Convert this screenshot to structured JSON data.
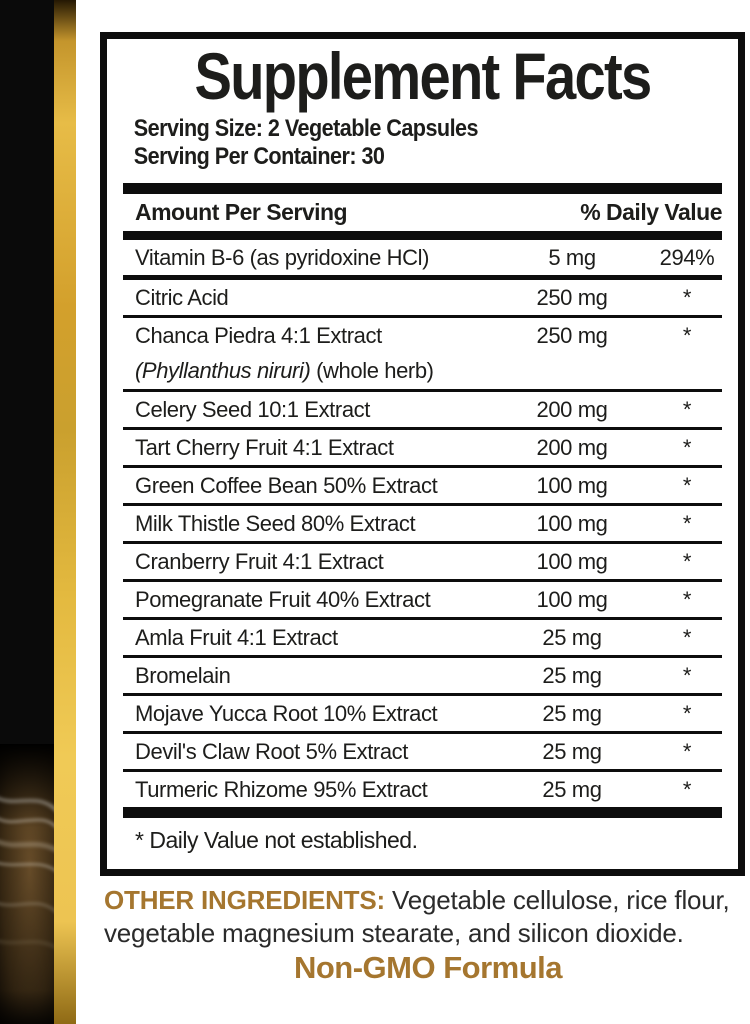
{
  "label": {
    "title": "Supplement Facts",
    "serving_size": "Serving Size: 2 Vegetable Capsules",
    "servings_per_container": "Serving Per Container: 30",
    "columns": {
      "amount_header": "Amount Per Serving",
      "dv_header": "% Daily Value"
    },
    "rows": [
      {
        "name": "Vitamin B-6 (as pyridoxine HCl)",
        "amount": "5 mg",
        "dv": "294%"
      },
      {
        "name": "Citric Acid",
        "amount": "250 mg",
        "dv": "*"
      },
      {
        "name": "Chanca Piedra 4:1 Extract",
        "name_line2_italic": "(Phyllanthus niruri)",
        "name_line2_regular": " (whole herb)",
        "amount": "250 mg",
        "dv": "*"
      },
      {
        "name": "Celery Seed 10:1 Extract",
        "amount": "200 mg",
        "dv": "*"
      },
      {
        "name": "Tart Cherry Fruit 4:1 Extract",
        "amount": "200 mg",
        "dv": "*"
      },
      {
        "name": "Green Coffee Bean 50% Extract",
        "amount": "100 mg",
        "dv": "*"
      },
      {
        "name": "Milk Thistle Seed 80% Extract",
        "amount": "100 mg",
        "dv": "*"
      },
      {
        "name": "Cranberry Fruit 4:1 Extract",
        "amount": "100 mg",
        "dv": "*"
      },
      {
        "name": "Pomegranate Fruit 40% Extract",
        "amount": "100 mg",
        "dv": "*"
      },
      {
        "name": "Amla Fruit 4:1 Extract",
        "amount": "25 mg",
        "dv": "*"
      },
      {
        "name": "Bromelain",
        "amount": "25 mg",
        "dv": "*"
      },
      {
        "name": "Mojave Yucca Root 10% Extract",
        "amount": "25 mg",
        "dv": "*"
      },
      {
        "name": "Devil's Claw Root 5% Extract",
        "amount": "25 mg",
        "dv": "*"
      },
      {
        "name": "Turmeric Rhizome 95% Extract",
        "amount": "25 mg",
        "dv": "*"
      }
    ],
    "footnote": "* Daily Value not established."
  },
  "bottom": {
    "other_ingredients_label": "OTHER INGREDIENTS:",
    "other_ingredients_text": " Vegetable cellulose, rice flour, vegetable magnesium stearate, and silicon dioxide.",
    "non_gmo": "Non-GMO Formula"
  },
  "colors": {
    "gold_text": "#a5762f",
    "gold_strip_bright": "#f0ca56",
    "gold_strip_dark": "#8f6a15",
    "ink": "#1d1d1b"
  }
}
